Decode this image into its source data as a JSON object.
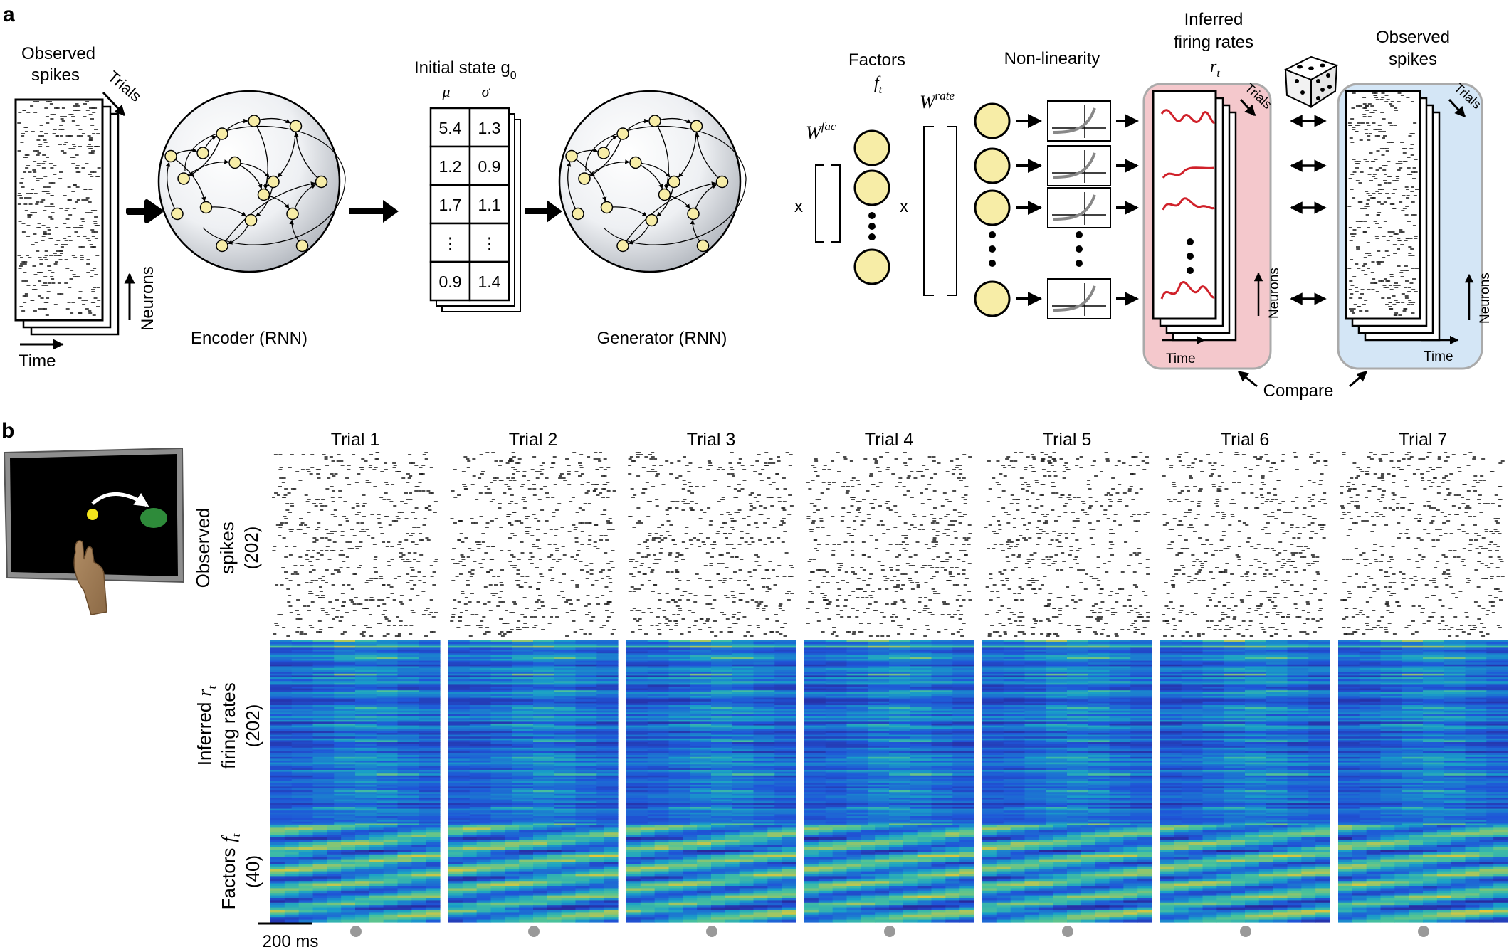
{
  "panel_a": {
    "label": "a",
    "observed_spikes_left": [
      "Observed",
      "spikes"
    ],
    "trials": "Trials",
    "neurons": "Neurons",
    "time": "Time",
    "encoder": "Encoder (RNN)",
    "initial_state": "Initial state g",
    "initial_state_sub": "0",
    "mu": "μ",
    "sigma": "σ",
    "g0_table": [
      [
        "5.4",
        "1.3"
      ],
      [
        "1.2",
        "0.9"
      ],
      [
        "1.7",
        "1.1"
      ],
      [
        "⋮",
        "⋮"
      ],
      [
        "0.9",
        "1.4"
      ]
    ],
    "generator": "Generator (RNN)",
    "factors": "Factors",
    "factors_symbol": "f",
    "factors_sub": "t",
    "w_fac": "W",
    "w_fac_sup": "fac",
    "w_rate": "W",
    "w_rate_sup": "rate",
    "times": "x",
    "nonlinearity": "Non-linearity",
    "inferred_rates": [
      "Inferred",
      "firing rates"
    ],
    "rates_symbol": "r",
    "rates_sub": "t",
    "observed_spikes_right": [
      "Observed",
      "spikes"
    ],
    "compare": "Compare",
    "colors": {
      "rates_box": "#f4c8cc",
      "spikes_box": "#d4e6f6",
      "node": "#f7eda7",
      "curve": "#d0212a"
    }
  },
  "panel_b": {
    "label": "b",
    "trials": [
      "Trial 1",
      "Trial 2",
      "Trial 3",
      "Trial 4",
      "Trial 5",
      "Trial 6",
      "Trial 7"
    ],
    "row_obs": [
      "Observed",
      "spikes",
      "(202)"
    ],
    "row_rates": [
      "Inferred",
      "firing rates",
      "(202)"
    ],
    "row_rates_symbol": "r",
    "row_rates_sub": "t",
    "row_factors": [
      "Factors",
      "(40)"
    ],
    "row_factors_symbol": "f",
    "row_factors_sub": "t",
    "scale_bar": "200 ms",
    "colormap": [
      "#2b1d8c",
      "#1f55d8",
      "#19a0c8",
      "#4bc39a",
      "#f0c830"
    ]
  }
}
